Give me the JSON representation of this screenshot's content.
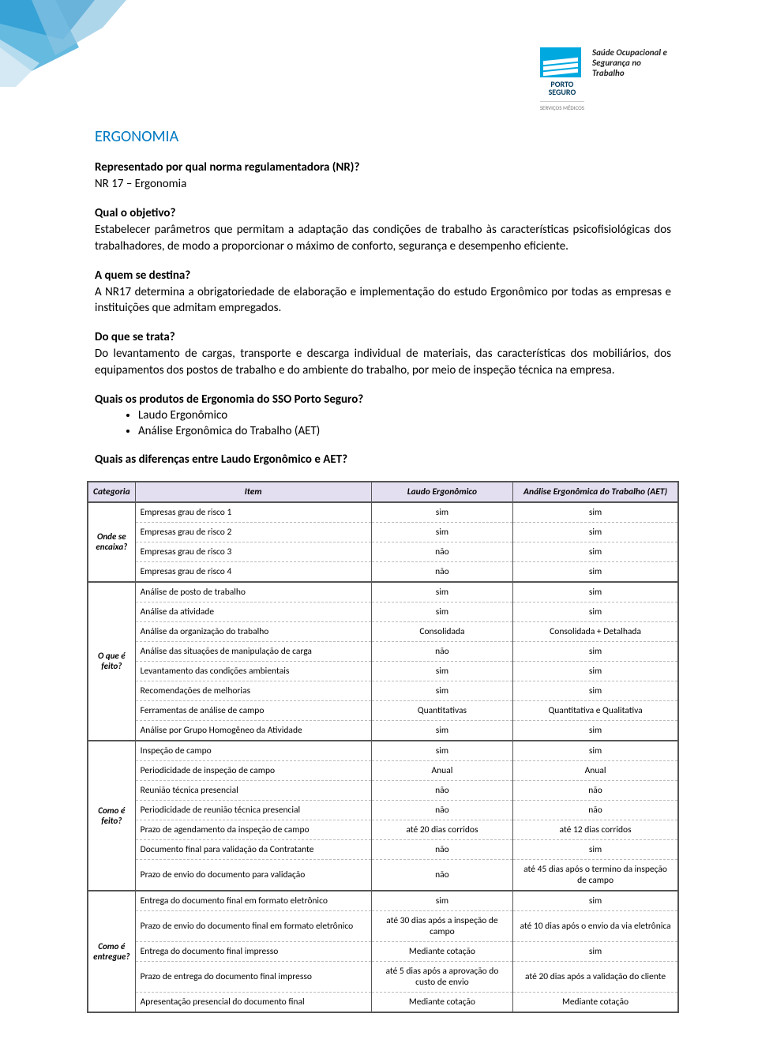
{
  "brand": {
    "name_line1": "PORTO",
    "name_line2": "SEGURO",
    "sub": "SERVIÇOS MÉDICOS",
    "tagline": "Saúde Ocupacional e Segurança no Trabalho",
    "logo_bg": "#00a8e0",
    "logo_stripe": "#ffffff"
  },
  "corner_colors": [
    "#0079c1",
    "#3fa9d8",
    "#8cc5e3",
    "#c9e3f1"
  ],
  "title": "ERGONOMIA",
  "title_color": "#0079c1",
  "sections": [
    {
      "q": "Representado por qual norma regulamentadora (NR)?",
      "a": "NR 17 – Ergonomia"
    },
    {
      "q": "Qual o objetivo?",
      "a": "Estabelecer parâmetros que permitam a adaptação das condições de trabalho às características psicofisiológicas dos trabalhadores, de modo a proporcionar o máximo de conforto, segurança e desempenho eficiente."
    },
    {
      "q": "A quem se destina?",
      "a": "A NR17 determina a obrigatoriedade de elaboração e implementação do estudo Ergonômico por todas as empresas e instituições que admitam empregados."
    },
    {
      "q": "Do que se trata?",
      "a": "Do levantamento de cargas, transporte e descarga individual de materiais, das características dos mobiliários, dos equipamentos dos postos de trabalho e do ambiente do trabalho, por meio de inspeção técnica na empresa."
    }
  ],
  "products_q": "Quais os produtos de Ergonomia do SSO Porto Seguro?",
  "products": [
    "Laudo Ergonômico",
    "Análise Ergonômica do Trabalho (AET)"
  ],
  "diff_q": "Quais as diferenças entre Laudo Ergonômico e AET?",
  "table": {
    "header_bg": "#e4dff0",
    "border_color": "#555555",
    "dash_color": "#bbbbbb",
    "columns": [
      "Categoria",
      "Item",
      "Laudo Ergonômico",
      "Análise Ergonômica do Trabalho (AET)"
    ],
    "groups": [
      {
        "category": "Onde se encaixa?",
        "rows": [
          [
            "Empresas grau de risco 1",
            "sim",
            "sim"
          ],
          [
            "Empresas grau de risco 2",
            "sim",
            "sim"
          ],
          [
            "Empresas grau de risco 3",
            "não",
            "sim"
          ],
          [
            "Empresas grau de risco 4",
            "não",
            "sim"
          ]
        ]
      },
      {
        "category": "O que é feito?",
        "rows": [
          [
            "Análise de posto de trabalho",
            "sim",
            "sim"
          ],
          [
            "Análise da atividade",
            "sim",
            "sim"
          ],
          [
            "Análise da organização do trabalho",
            "Consolidada",
            "Consolidada + Detalhada"
          ],
          [
            "Análise das situações de manipulação de carga",
            "não",
            "sim"
          ],
          [
            "Levantamento das condições ambientais",
            "sim",
            "sim"
          ],
          [
            "Recomendações de melhorias",
            "sim",
            "sim"
          ],
          [
            "Ferramentas de análise de campo",
            "Quantitativas",
            "Quantitativa e Qualitativa"
          ],
          [
            "Análise por Grupo Homogêneo da Atividade",
            "sim",
            "sim"
          ]
        ]
      },
      {
        "category": "Como é feito?",
        "rows": [
          [
            "Inspeção de campo",
            "sim",
            "sim"
          ],
          [
            "Periodicidade de inspeção de campo",
            "Anual",
            "Anual"
          ],
          [
            "Reunião técnica presencial",
            "não",
            "não"
          ],
          [
            "Periodicidade de reunião técnica presencial",
            "não",
            "não"
          ],
          [
            "Prazo de  agendamento da inspeção de campo",
            "até 20 dias corridos",
            "até 12 dias corridos"
          ],
          [
            "Documento final para validação da Contratante",
            "não",
            "sim"
          ],
          [
            "Prazo de envio do documento para validação",
            "não",
            "até 45 dias após o termino  da inspeção de campo"
          ]
        ]
      },
      {
        "category": "Como é entregue?",
        "rows": [
          [
            "Entrega do documento final em formato eletrônico",
            "sim",
            "sim"
          ],
          [
            "Prazo de envio do documento final em formato eletrônico",
            "até 30 dias após a inspeção de campo",
            "até 10 dias após o envio da via eletrônica"
          ],
          [
            "Entrega do documento final impresso",
            "Mediante cotação",
            "sim"
          ],
          [
            "Prazo de entrega do documento final impresso",
            "até 5 dias após a aprovação do custo de envio",
            "até 20 dias após a validação do cliente"
          ],
          [
            "Apresentação presencial do documento final",
            "Mediante cotação",
            "Mediante cotação"
          ]
        ]
      }
    ]
  }
}
